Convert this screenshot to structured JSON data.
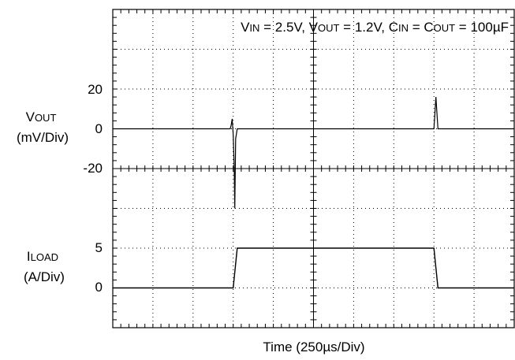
{
  "chart_data": {
    "type": "line",
    "title": "",
    "conditions": {
      "v_in_sym": "V",
      "v_in_sub": "IN",
      "v_in_val": " = 2.5V, ",
      "v_out_sym": "V",
      "v_out_sub": "OUT",
      "v_out_val": " = 1.2V, ",
      "c_in_sym": "C",
      "c_in_sub": "IN",
      "eq": " = ",
      "c_out_sym": "C",
      "c_out_sub": "OUT",
      "c_out_val": " = 100µF"
    },
    "xlabel": "Time  (250µs/Div)",
    "x_unit": "div",
    "x_divisions": 10,
    "y_divisions": 8,
    "grid": true,
    "vout_channel": {
      "label_sym": "V",
      "label_sub": "OUT",
      "label_unit": "(mV/Div)",
      "ticks": [
        "20",
        "0",
        "-20"
      ],
      "scale_mv_per_div": 20,
      "points": [
        [
          0,
          0
        ],
        [
          5.85,
          0
        ],
        [
          5.9,
          2
        ],
        [
          5.95,
          5
        ],
        [
          6.0,
          -3
        ],
        [
          6.05,
          -20
        ],
        [
          6.08,
          -40
        ],
        [
          6.12,
          -5
        ],
        [
          6.2,
          0
        ],
        [
          16.0,
          0
        ],
        [
          16.05,
          8
        ],
        [
          16.1,
          16
        ],
        [
          16.15,
          8
        ],
        [
          16.2,
          0
        ],
        [
          20,
          0
        ]
      ]
    },
    "iload_channel": {
      "label_sym": "I",
      "label_sub": "LOAD",
      "label_unit": "(A/Div)",
      "ticks": [
        "5",
        "0"
      ],
      "scale_a_per_div": 5,
      "points": [
        [
          0,
          0
        ],
        [
          6.0,
          0
        ],
        [
          6.2,
          5
        ],
        [
          16.0,
          5
        ],
        [
          16.2,
          0
        ],
        [
          20,
          0
        ]
      ]
    }
  }
}
